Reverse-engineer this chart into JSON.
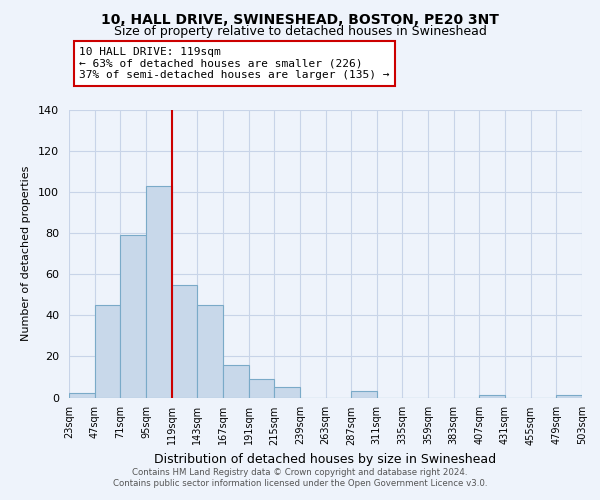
{
  "title": "10, HALL DRIVE, SWINESHEAD, BOSTON, PE20 3NT",
  "subtitle": "Size of property relative to detached houses in Swineshead",
  "xlabel": "Distribution of detached houses by size in Swineshead",
  "ylabel": "Number of detached properties",
  "footer_line1": "Contains HM Land Registry data © Crown copyright and database right 2024.",
  "footer_line2": "Contains public sector information licensed under the Open Government Licence v3.0.",
  "bin_edges": [
    23,
    47,
    71,
    95,
    119,
    143,
    167,
    191,
    215,
    239,
    263,
    287,
    311,
    335,
    359,
    383,
    407,
    431,
    455,
    479,
    503
  ],
  "bin_counts": [
    2,
    45,
    79,
    103,
    55,
    45,
    16,
    9,
    5,
    0,
    0,
    3,
    0,
    0,
    0,
    0,
    1,
    0,
    0,
    1
  ],
  "bar_color": "#c8d8ea",
  "bar_edge_color": "#7aaac8",
  "vline_x": 119,
  "vline_color": "#cc0000",
  "annotation_title": "10 HALL DRIVE: 119sqm",
  "annotation_line2": "← 63% of detached houses are smaller (226)",
  "annotation_line3": "37% of semi-detached houses are larger (135) →",
  "annotation_box_color": "#cc0000",
  "annotation_fill": "#ffffff",
  "ylim": [
    0,
    140
  ],
  "yticks": [
    0,
    20,
    40,
    60,
    80,
    100,
    120,
    140
  ],
  "tick_labels": [
    "23sqm",
    "47sqm",
    "71sqm",
    "95sqm",
    "119sqm",
    "143sqm",
    "167sqm",
    "191sqm",
    "215sqm",
    "239sqm",
    "263sqm",
    "287sqm",
    "311sqm",
    "335sqm",
    "359sqm",
    "383sqm",
    "407sqm",
    "431sqm",
    "455sqm",
    "479sqm",
    "503sqm"
  ],
  "background_color": "#eef3fb",
  "grid_color": "#c8d4e8",
  "plot_bg_color": "#eef3fb"
}
